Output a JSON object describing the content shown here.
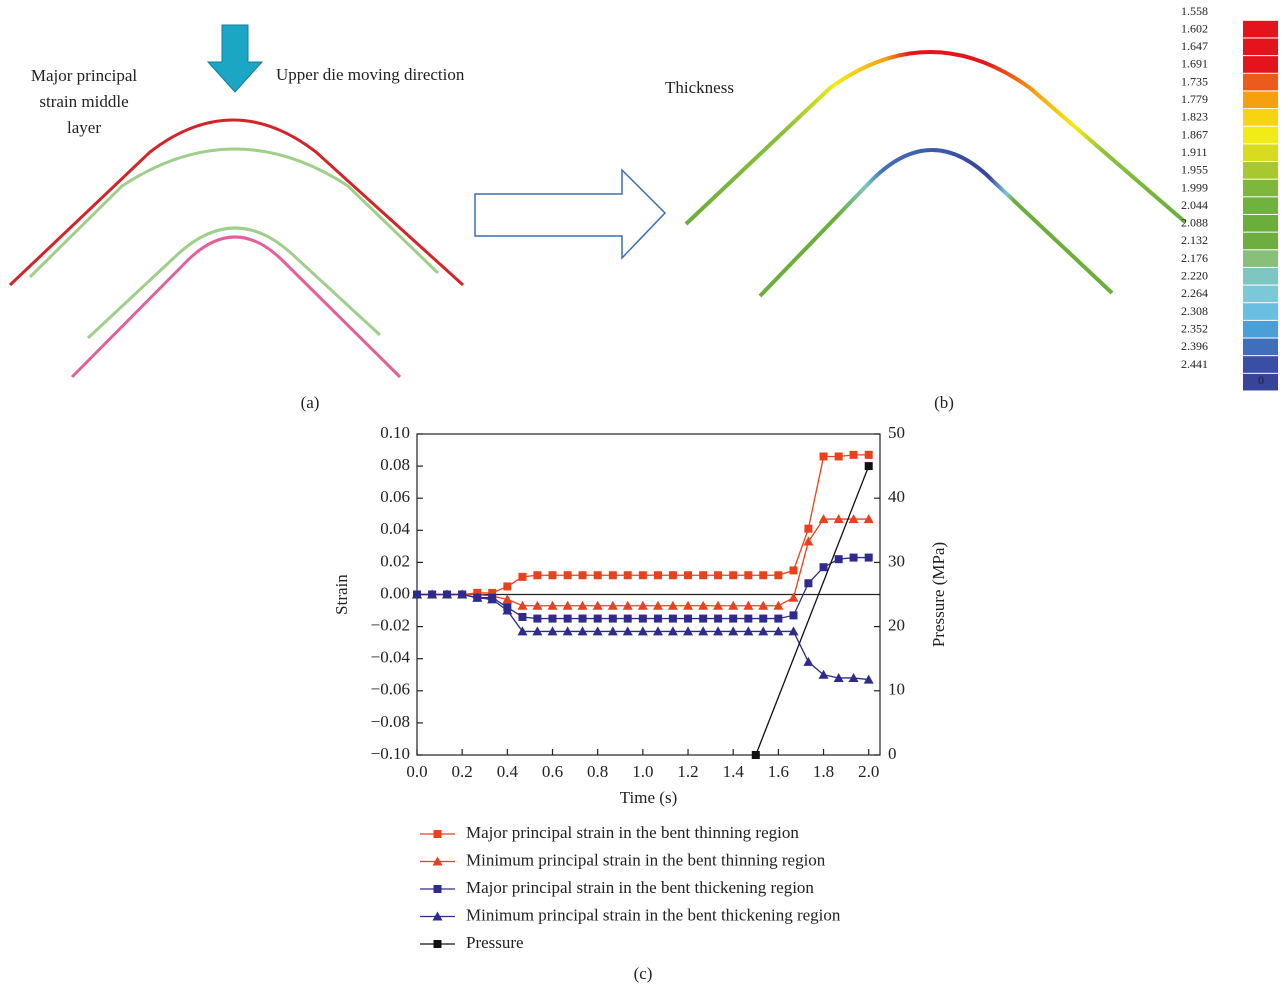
{
  "figure": {
    "panel_a": {
      "label": "(a)",
      "strain_label": [
        "Major principal",
        "strain middle",
        "layer"
      ],
      "die_label": "Upper die moving direction"
    },
    "panel_b": {
      "label": "(b)",
      "thickness_label": "Thickness"
    },
    "colorbar": {
      "labels": [
        "1.558",
        "1.602",
        "1.647",
        "1.691",
        "1.735",
        "1.779",
        "1.823",
        "1.867",
        "1.911",
        "1.955",
        "1.999",
        "2.044",
        "2.088",
        "2.132",
        "2.176",
        "2.220",
        "2.264",
        "2.308",
        "2.352",
        "2.396",
        "2.441"
      ],
      "colors": [
        "#e3141c",
        "#e3141c",
        "#e3141c",
        "#ec5a1e",
        "#f5a00f",
        "#f6d40f",
        "#f3ec14",
        "#d8dc1e",
        "#a8c830",
        "#7db83a",
        "#6fb23c",
        "#6bae3a",
        "#6dae3e",
        "#88c07a",
        "#7ec7c0",
        "#7ac8d8",
        "#68bfe0",
        "#4a9fd8",
        "#3f6fbb",
        "#3b4ea5",
        "#38449a"
      ],
      "zero_label": "0"
    }
  },
  "chart_data": {
    "type": "line",
    "caption": "(c)",
    "x_label": "Time (s)",
    "y_label": "Strain",
    "y2_label": "Pressure (MPa)",
    "x": [
      0,
      0.067,
      0.133,
      0.2,
      0.267,
      0.333,
      0.4,
      0.467,
      0.533,
      0.6,
      0.667,
      0.733,
      0.8,
      0.867,
      0.933,
      1.0,
      1.067,
      1.133,
      1.2,
      1.267,
      1.333,
      1.4,
      1.467,
      1.533,
      1.6,
      1.667,
      1.733,
      1.8,
      1.867,
      1.933,
      2.0
    ],
    "series": [
      {
        "name": "Major principal strain in the bent thinning region",
        "color": "#e8411e",
        "marker": "square",
        "values": [
          0,
          0,
          0,
          0,
          0.001,
          0.001,
          0.005,
          0.011,
          0.012,
          0.012,
          0.012,
          0.012,
          0.012,
          0.012,
          0.012,
          0.012,
          0.012,
          0.012,
          0.012,
          0.012,
          0.012,
          0.012,
          0.012,
          0.012,
          0.012,
          0.015,
          0.041,
          0.086,
          0.086,
          0.087,
          0.087
        ]
      },
      {
        "name": "Minimum principal strain in the bent thinning region",
        "color": "#e8411e",
        "marker": "triangle",
        "values": [
          0,
          0,
          0,
          0,
          0,
          -0.001,
          -0.003,
          -0.007,
          -0.007,
          -0.007,
          -0.007,
          -0.007,
          -0.007,
          -0.007,
          -0.007,
          -0.007,
          -0.007,
          -0.007,
          -0.007,
          -0.007,
          -0.007,
          -0.007,
          -0.007,
          -0.007,
          -0.007,
          -0.002,
          0.033,
          0.047,
          0.047,
          0.047,
          0.047
        ]
      },
      {
        "name": "Major principal strain in the bent thickening region",
        "color": "#2f2b8c",
        "marker": "square",
        "values": [
          0,
          0,
          0,
          0,
          -0.002,
          -0.002,
          -0.008,
          -0.014,
          -0.015,
          -0.015,
          -0.015,
          -0.015,
          -0.015,
          -0.015,
          -0.015,
          -0.015,
          -0.015,
          -0.015,
          -0.015,
          -0.015,
          -0.015,
          -0.015,
          -0.015,
          -0.015,
          -0.015,
          -0.013,
          0.007,
          0.017,
          0.022,
          0.023,
          0.023
        ]
      },
      {
        "name": "Minimum principal strain in the bent thickening region",
        "color": "#2f2b8c",
        "marker": "triangle",
        "values": [
          0,
          0,
          0,
          0,
          -0.002,
          -0.003,
          -0.01,
          -0.023,
          -0.023,
          -0.023,
          -0.023,
          -0.023,
          -0.023,
          -0.023,
          -0.023,
          -0.023,
          -0.023,
          -0.023,
          -0.023,
          -0.023,
          -0.023,
          -0.023,
          -0.023,
          -0.023,
          -0.023,
          -0.023,
          -0.042,
          -0.05,
          -0.052,
          -0.052,
          -0.053
        ]
      },
      {
        "name": "Pressure",
        "color": "#111111",
        "marker": "square",
        "axis": "y2",
        "x": [
          1.5,
          2.0
        ],
        "values": [
          0,
          45
        ]
      }
    ],
    "xlim": [
      0,
      2.05
    ],
    "xticks": [
      {
        "value": 0,
        "label": "0.0"
      },
      {
        "value": 0.2,
        "label": "0.2"
      },
      {
        "value": 0.4,
        "label": "0.4"
      },
      {
        "value": 0.6,
        "label": "0.6"
      },
      {
        "value": 0.8,
        "label": "0.8"
      },
      {
        "value": 1.0,
        "label": "1.0"
      },
      {
        "value": 1.2,
        "label": "1.2"
      },
      {
        "value": 1.4,
        "label": "1.4"
      },
      {
        "value": 1.6,
        "label": "1.6"
      },
      {
        "value": 1.8,
        "label": "1.8"
      },
      {
        "value": 2.0,
        "label": "2.0"
      }
    ],
    "ylim": [
      -0.1,
      0.1
    ],
    "yticks": [
      {
        "value": -0.1,
        "label": "−0.10"
      },
      {
        "value": -0.08,
        "label": "−0.08"
      },
      {
        "value": -0.06,
        "label": "−0.06"
      },
      {
        "value": -0.04,
        "label": "−0.04"
      },
      {
        "value": -0.02,
        "label": "−0.02"
      },
      {
        "value": 0,
        "label": "0.00"
      },
      {
        "value": 0.02,
        "label": "0.02"
      },
      {
        "value": 0.04,
        "label": "0.04"
      },
      {
        "value": 0.06,
        "label": "0.06"
      },
      {
        "value": 0.08,
        "label": "0.08"
      },
      {
        "value": 0.1,
        "label": "0.10"
      }
    ],
    "y2lim": [
      0,
      50
    ],
    "y2ticks": [
      0,
      10,
      20,
      30,
      40,
      50
    ],
    "zero_line": true
  }
}
